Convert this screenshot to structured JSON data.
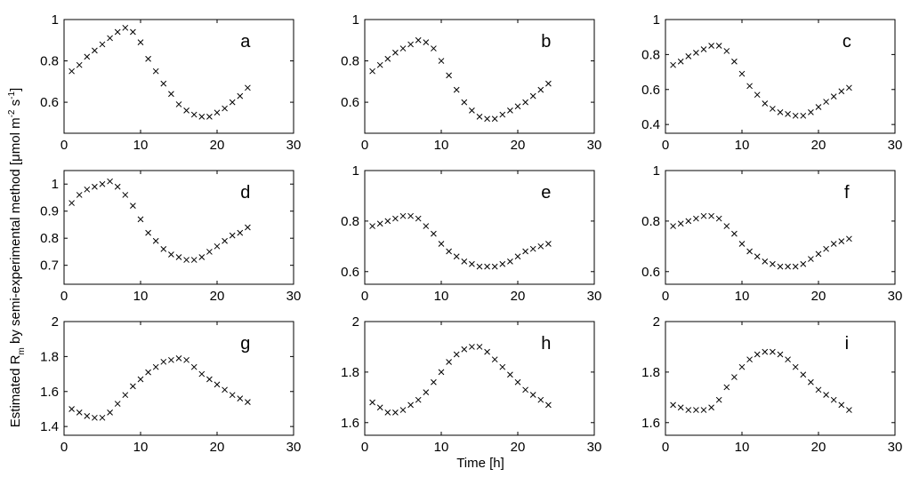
{
  "figure": {
    "ylabel_main": "Estimated R",
    "ylabel_sub": "m",
    "ylabel_rest": " by semi-experimental method [",
    "ylabel_mu": "μ",
    "ylabel_unit": "mol m",
    "ylabel_exp1": "-2",
    "ylabel_s": " s",
    "ylabel_exp2": "-1",
    "ylabel_close": "]",
    "xlabel": "Time [h]"
  },
  "chart_data": [
    {
      "type": "scatter",
      "panel": "a",
      "xlim": [
        0,
        30
      ],
      "ylim": [
        0.45,
        1.0
      ],
      "xticks": [
        0,
        10,
        20,
        30
      ],
      "yticks": [
        0.6,
        0.8,
        1
      ],
      "ytick_labels": [
        "0.6",
        "0.8",
        "1"
      ],
      "x": [
        1,
        2,
        3,
        4,
        5,
        6,
        7,
        8,
        9,
        10,
        11,
        12,
        13,
        14,
        15,
        16,
        17,
        18,
        19,
        20,
        21,
        22,
        23,
        24
      ],
      "y": [
        0.75,
        0.78,
        0.82,
        0.85,
        0.88,
        0.91,
        0.94,
        0.96,
        0.94,
        0.89,
        0.81,
        0.75,
        0.69,
        0.64,
        0.59,
        0.56,
        0.54,
        0.53,
        0.53,
        0.55,
        0.57,
        0.6,
        0.63,
        0.67
      ]
    },
    {
      "type": "scatter",
      "panel": "b",
      "xlim": [
        0,
        30
      ],
      "ylim": [
        0.45,
        1.0
      ],
      "xticks": [
        0,
        10,
        20,
        30
      ],
      "yticks": [
        0.6,
        0.8,
        1
      ],
      "ytick_labels": [
        "0.6",
        "0.8",
        "1"
      ],
      "x": [
        1,
        2,
        3,
        4,
        5,
        6,
        7,
        8,
        9,
        10,
        11,
        12,
        13,
        14,
        15,
        16,
        17,
        18,
        19,
        20,
        21,
        22,
        23,
        24
      ],
      "y": [
        0.75,
        0.78,
        0.81,
        0.84,
        0.86,
        0.88,
        0.9,
        0.89,
        0.86,
        0.8,
        0.73,
        0.66,
        0.6,
        0.56,
        0.53,
        0.52,
        0.52,
        0.54,
        0.56,
        0.58,
        0.6,
        0.63,
        0.66,
        0.69
      ]
    },
    {
      "type": "scatter",
      "panel": "c",
      "xlim": [
        0,
        30
      ],
      "ylim": [
        0.35,
        1.0
      ],
      "xticks": [
        0,
        10,
        20,
        30
      ],
      "yticks": [
        0.4,
        0.6,
        0.8,
        1
      ],
      "ytick_labels": [
        "0.4",
        "0.6",
        "0.8",
        "1"
      ],
      "x": [
        1,
        2,
        3,
        4,
        5,
        6,
        7,
        8,
        9,
        10,
        11,
        12,
        13,
        14,
        15,
        16,
        17,
        18,
        19,
        20,
        21,
        22,
        23,
        24
      ],
      "y": [
        0.74,
        0.76,
        0.79,
        0.81,
        0.83,
        0.85,
        0.85,
        0.82,
        0.76,
        0.69,
        0.62,
        0.57,
        0.52,
        0.49,
        0.47,
        0.46,
        0.45,
        0.45,
        0.47,
        0.5,
        0.53,
        0.56,
        0.59,
        0.61
      ]
    },
    {
      "type": "scatter",
      "panel": "d",
      "xlim": [
        0,
        30
      ],
      "ylim": [
        0.63,
        1.05
      ],
      "xticks": [
        0,
        10,
        20,
        30
      ],
      "yticks": [
        0.7,
        0.8,
        0.9,
        1
      ],
      "ytick_labels": [
        "0.7",
        "0.8",
        "0.9",
        "1"
      ],
      "x": [
        1,
        2,
        3,
        4,
        5,
        6,
        7,
        8,
        9,
        10,
        11,
        12,
        13,
        14,
        15,
        16,
        17,
        18,
        19,
        20,
        21,
        22,
        23,
        24
      ],
      "y": [
        0.93,
        0.96,
        0.98,
        0.99,
        1.0,
        1.01,
        0.99,
        0.96,
        0.92,
        0.87,
        0.82,
        0.79,
        0.76,
        0.74,
        0.73,
        0.72,
        0.72,
        0.73,
        0.75,
        0.77,
        0.79,
        0.81,
        0.82,
        0.84
      ]
    },
    {
      "type": "scatter",
      "panel": "e",
      "xlim": [
        0,
        30
      ],
      "ylim": [
        0.55,
        1.0
      ],
      "xticks": [
        0,
        10,
        20,
        30
      ],
      "yticks": [
        0.6,
        0.8,
        1
      ],
      "ytick_labels": [
        "0.6",
        "0.8",
        "1"
      ],
      "x": [
        1,
        2,
        3,
        4,
        5,
        6,
        7,
        8,
        9,
        10,
        11,
        12,
        13,
        14,
        15,
        16,
        17,
        18,
        19,
        20,
        21,
        22,
        23,
        24
      ],
      "y": [
        0.78,
        0.79,
        0.8,
        0.81,
        0.82,
        0.82,
        0.81,
        0.78,
        0.75,
        0.71,
        0.68,
        0.66,
        0.64,
        0.63,
        0.62,
        0.62,
        0.62,
        0.63,
        0.64,
        0.66,
        0.68,
        0.69,
        0.7,
        0.71
      ]
    },
    {
      "type": "scatter",
      "panel": "f",
      "xlim": [
        0,
        30
      ],
      "ylim": [
        0.55,
        1.0
      ],
      "xticks": [
        0,
        10,
        20,
        30
      ],
      "yticks": [
        0.6,
        0.8,
        1
      ],
      "ytick_labels": [
        "0.6",
        "0.8",
        "1"
      ],
      "x": [
        1,
        2,
        3,
        4,
        5,
        6,
        7,
        8,
        9,
        10,
        11,
        12,
        13,
        14,
        15,
        16,
        17,
        18,
        19,
        20,
        21,
        22,
        23,
        24
      ],
      "y": [
        0.78,
        0.79,
        0.8,
        0.81,
        0.82,
        0.82,
        0.81,
        0.78,
        0.75,
        0.71,
        0.68,
        0.66,
        0.64,
        0.63,
        0.62,
        0.62,
        0.62,
        0.63,
        0.65,
        0.67,
        0.69,
        0.71,
        0.72,
        0.73
      ]
    },
    {
      "type": "scatter",
      "panel": "g",
      "xlim": [
        0,
        30
      ],
      "ylim": [
        1.35,
        2.0
      ],
      "xticks": [
        0,
        10,
        20,
        30
      ],
      "yticks": [
        1.4,
        1.6,
        1.8,
        2
      ],
      "ytick_labels": [
        "1.4",
        "1.6",
        "1.8",
        "2"
      ],
      "x": [
        1,
        2,
        3,
        4,
        5,
        6,
        7,
        8,
        9,
        10,
        11,
        12,
        13,
        14,
        15,
        16,
        17,
        18,
        19,
        20,
        21,
        22,
        23,
        24
      ],
      "y": [
        1.5,
        1.48,
        1.46,
        1.45,
        1.45,
        1.48,
        1.53,
        1.58,
        1.63,
        1.67,
        1.71,
        1.74,
        1.77,
        1.78,
        1.79,
        1.78,
        1.74,
        1.7,
        1.67,
        1.64,
        1.61,
        1.58,
        1.56,
        1.54
      ]
    },
    {
      "type": "scatter",
      "panel": "h",
      "xlim": [
        0,
        30
      ],
      "ylim": [
        1.55,
        2.0
      ],
      "xticks": [
        0,
        10,
        20,
        30
      ],
      "yticks": [
        1.6,
        1.8,
        2
      ],
      "ytick_labels": [
        "1.6",
        "1.8",
        "2"
      ],
      "x": [
        1,
        2,
        3,
        4,
        5,
        6,
        7,
        8,
        9,
        10,
        11,
        12,
        13,
        14,
        15,
        16,
        17,
        18,
        19,
        20,
        21,
        22,
        23,
        24
      ],
      "y": [
        1.68,
        1.66,
        1.64,
        1.64,
        1.65,
        1.67,
        1.69,
        1.72,
        1.76,
        1.8,
        1.84,
        1.87,
        1.89,
        1.9,
        1.9,
        1.88,
        1.85,
        1.82,
        1.79,
        1.76,
        1.73,
        1.71,
        1.69,
        1.67
      ]
    },
    {
      "type": "scatter",
      "panel": "i",
      "xlim": [
        0,
        30
      ],
      "ylim": [
        1.55,
        2.0
      ],
      "xticks": [
        0,
        10,
        20,
        30
      ],
      "yticks": [
        1.6,
        1.8,
        2
      ],
      "ytick_labels": [
        "1.6",
        "1.8",
        "2"
      ],
      "x": [
        1,
        2,
        3,
        4,
        5,
        6,
        7,
        8,
        9,
        10,
        11,
        12,
        13,
        14,
        15,
        16,
        17,
        18,
        19,
        20,
        21,
        22,
        23,
        24
      ],
      "y": [
        1.67,
        1.66,
        1.65,
        1.65,
        1.65,
        1.66,
        1.69,
        1.74,
        1.78,
        1.82,
        1.85,
        1.87,
        1.88,
        1.88,
        1.87,
        1.85,
        1.82,
        1.79,
        1.76,
        1.73,
        1.71,
        1.69,
        1.67,
        1.65
      ]
    }
  ]
}
